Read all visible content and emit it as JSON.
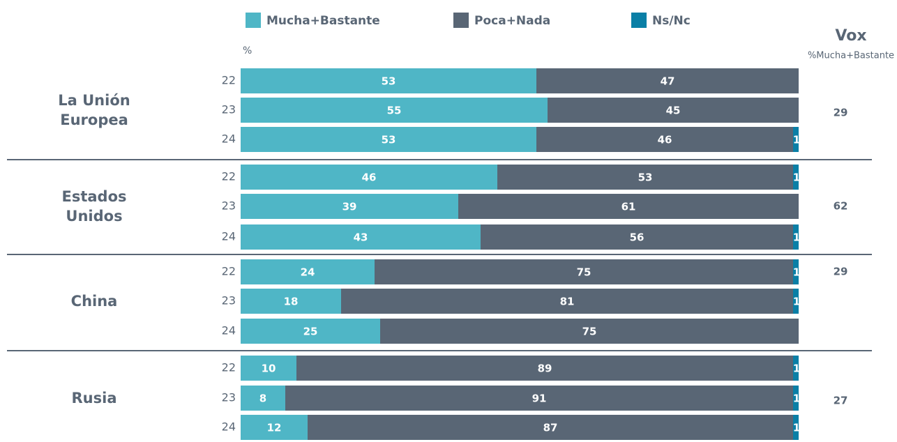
{
  "chart_data": {
    "type": "bar",
    "orientation": "horizontal",
    "stacked": true,
    "unit_label": "%",
    "side_title": "Vox",
    "side_subtitle": "%Mucha+Bastante",
    "categories": [
      "22",
      "23",
      "24",
      "22",
      "23",
      "24",
      "22",
      "23",
      "24",
      "22",
      "23",
      "24"
    ],
    "groups": [
      {
        "name": "La Unión Europea",
        "vox": 29
      },
      {
        "name": "Estados Unidos",
        "vox": 62
      },
      {
        "name": "China",
        "vox": 29
      },
      {
        "name": "Rusia",
        "vox": 27
      }
    ],
    "xlim": [
      0,
      100
    ],
    "series": [
      {
        "name": "Mucha+Bastante",
        "color": "#4fb6c6",
        "values": [
          53,
          55,
          53,
          46,
          39,
          43,
          24,
          18,
          25,
          10,
          8,
          12
        ]
      },
      {
        "name": "Poca+Nada",
        "color": "#596675",
        "values": [
          47,
          45,
          46,
          53,
          61,
          56,
          75,
          81,
          75,
          89,
          91,
          87
        ]
      },
      {
        "name": "Ns/Nc",
        "color": "#0a7fa6",
        "values": [
          null,
          null,
          1,
          1,
          null,
          1,
          1,
          1,
          null,
          1,
          1,
          1
        ]
      }
    ]
  }
}
